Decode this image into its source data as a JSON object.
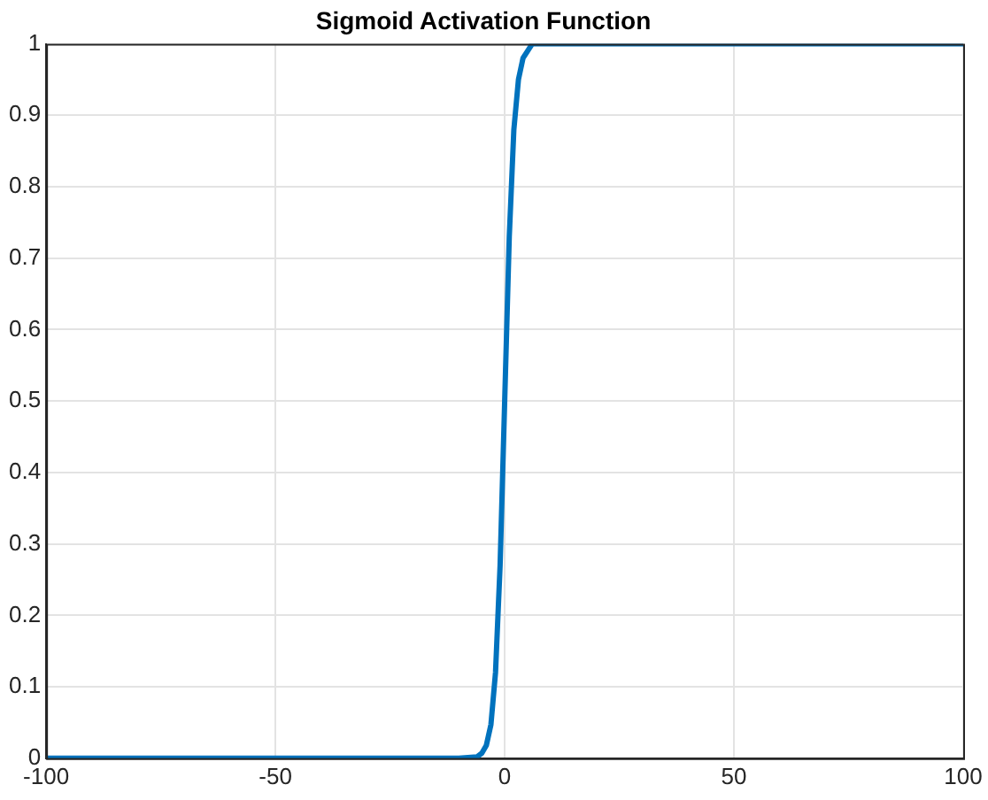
{
  "chart_data": {
    "type": "line",
    "title": "Sigmoid Activation Function",
    "x": [
      -100,
      -50,
      -20,
      -10,
      -6,
      -5,
      -4,
      -3,
      -2,
      -1,
      0,
      1,
      2,
      3,
      4,
      5,
      6,
      10,
      20,
      50,
      100
    ],
    "series": [
      {
        "color": "#0072bd",
        "values": [
          0,
          0,
          0,
          0,
          0.002,
          0.007,
          0.018,
          0.047,
          0.12,
          0.27,
          0.5,
          0.73,
          0.88,
          0.95,
          0.98,
          0.99,
          1,
          1,
          1,
          1,
          1
        ]
      }
    ],
    "xlim": [
      -100,
      100
    ],
    "xticks": [
      -100,
      -50,
      0,
      50,
      100
    ],
    "ylim": [
      0,
      1
    ],
    "yticks": [
      0,
      0.1,
      0.2,
      0.3,
      0.4,
      0.5,
      0.6,
      0.7,
      0.8,
      0.9,
      1
    ],
    "grid": true,
    "legend": false,
    "marker": "none",
    "line_style": "solid"
  }
}
